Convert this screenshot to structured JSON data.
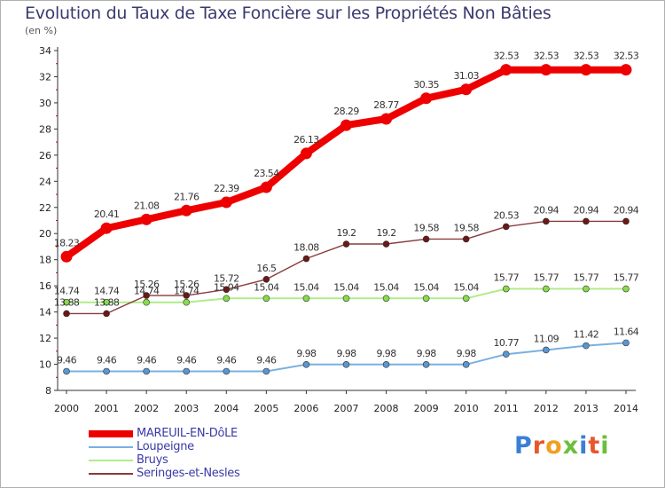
{
  "chart_data": {
    "type": "line",
    "title": "Evolution du Taux de Taxe Foncière sur les Propriétés Non Bâties",
    "subtitle": "(en %)",
    "x": [
      "2000",
      "2001",
      "2002",
      "2003",
      "2004",
      "2005",
      "2006",
      "2007",
      "2008",
      "2009",
      "2010",
      "2011",
      "2012",
      "2013",
      "2014"
    ],
    "ylim": [
      8,
      34
    ],
    "yticks": [
      "8",
      "10",
      "12",
      "14",
      "16",
      "18",
      "20",
      "22",
      "24",
      "26",
      "28",
      "30",
      "32",
      "34"
    ],
    "grid": false,
    "legend_position": "bottom-left",
    "series": [
      {
        "name": "MAREUIL-EN-DôLE",
        "color": "#ee0000",
        "values": [
          18.23,
          20.41,
          21.08,
          21.76,
          22.39,
          23.54,
          26.13,
          28.29,
          28.77,
          30.35,
          31.03,
          32.53,
          32.53,
          32.53,
          32.53
        ],
        "labels": [
          "18.23",
          "20.41",
          "21.08",
          "21.76",
          "22.39",
          "23.54",
          "26.13",
          "28.29",
          "28.77",
          "30.35",
          "31.03",
          "32.53",
          "32.53",
          "32.53",
          "32.53"
        ]
      },
      {
        "name": "Loupeigne",
        "color": "#6fa3d6",
        "values": [
          9.46,
          9.46,
          9.46,
          9.46,
          9.46,
          9.46,
          9.98,
          9.98,
          9.98,
          9.98,
          9.98,
          10.77,
          11.09,
          11.42,
          11.64
        ],
        "labels": [
          "9.46",
          "9.46",
          "9.46",
          "9.46",
          "9.46",
          "9.46",
          "9.98",
          "9.98",
          "9.98",
          "9.98",
          "9.98",
          "10.77",
          "11.09",
          "11.42",
          "11.64"
        ]
      },
      {
        "name": "Bruys",
        "color": "#99e066",
        "values": [
          14.74,
          14.74,
          14.74,
          14.74,
          15.04,
          15.04,
          15.04,
          15.04,
          15.04,
          15.04,
          15.04,
          15.77,
          15.77,
          15.77,
          15.77
        ],
        "labels": [
          "14.74",
          "14.74",
          "14.74",
          "14.74",
          "15.04",
          "15.04",
          "15.04",
          "15.04",
          "15.04",
          "15.04",
          "15.04",
          "15.77",
          "15.77",
          "15.77",
          "15.77"
        ]
      },
      {
        "name": "Seringes-et-Nesles",
        "color": "#7a2a2a",
        "values": [
          13.88,
          13.88,
          15.26,
          15.26,
          15.72,
          16.5,
          18.08,
          19.2,
          19.2,
          19.58,
          19.58,
          20.53,
          20.94,
          20.94,
          20.94
        ],
        "labels": [
          "13.88",
          "13.88",
          "15.26",
          "15.26",
          "15.72",
          "16.5",
          "18.08",
          "19.2",
          "19.2",
          "19.58",
          "19.58",
          "20.53",
          "20.94",
          "20.94",
          "20.94"
        ]
      }
    ]
  },
  "logo": {
    "text": "Proxiti",
    "colors": [
      "#3a7fd6",
      "#e8562a",
      "#f0a020",
      "#6bbf3a",
      "#3a7fd6",
      "#e8562a",
      "#6bbf3a"
    ]
  }
}
